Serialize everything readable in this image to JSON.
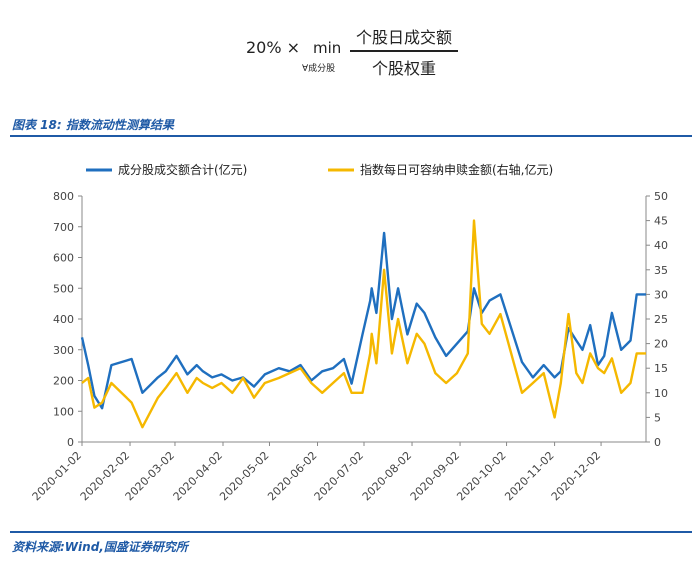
{
  "formula": {
    "prefix": "20% ×",
    "operator": "min",
    "subscript": "∀成分股",
    "numerator": "个股日成交额",
    "denominator": "个股权重"
  },
  "figure_title": "图表 18:  指数流动性测算结果",
  "source": "资料来源:Wind,国盛证券研究所",
  "colors": {
    "series1": "#1f6fbf",
    "series2": "#f5b800",
    "accent": "#1f5aa6"
  },
  "chart_data": {
    "type": "line",
    "legend_position": "top",
    "grid": false,
    "x_ticks": [
      "2020-01-02",
      "2020-02-02",
      "2020-03-02",
      "2020-04-02",
      "2020-05-02",
      "2020-06-02",
      "2020-07-02",
      "2020-08-02",
      "2020-09-02",
      "2020-10-02",
      "2020-11-02",
      "2020-12-02"
    ],
    "xlim": [
      "2020-01-02",
      "2020-12-31"
    ],
    "y_left": {
      "lim": [
        0,
        800
      ],
      "ticks": [
        0,
        100,
        200,
        300,
        400,
        500,
        600,
        700,
        800
      ]
    },
    "y_right": {
      "lim": [
        0,
        50
      ],
      "ticks": [
        0,
        5,
        10,
        15,
        20,
        25,
        30,
        35,
        40,
        45,
        50
      ]
    },
    "series": [
      {
        "name": "成分股成交额合计(亿元)",
        "axis": "left",
        "dates": [
          "2020-01-02",
          "2020-01-06",
          "2020-01-10",
          "2020-01-15",
          "2020-01-21",
          "2020-02-03",
          "2020-02-10",
          "2020-02-20",
          "2020-02-25",
          "2020-03-03",
          "2020-03-10",
          "2020-03-16",
          "2020-03-20",
          "2020-03-26",
          "2020-04-01",
          "2020-04-08",
          "2020-04-15",
          "2020-04-22",
          "2020-04-29",
          "2020-05-08",
          "2020-05-15",
          "2020-05-22",
          "2020-05-29",
          "2020-06-05",
          "2020-06-12",
          "2020-06-19",
          "2020-06-24",
          "2020-07-01",
          "2020-07-06",
          "2020-07-07",
          "2020-07-10",
          "2020-07-15",
          "2020-07-20",
          "2020-07-24",
          "2020-07-30",
          "2020-08-05",
          "2020-08-10",
          "2020-08-17",
          "2020-08-24",
          "2020-08-31",
          "2020-09-07",
          "2020-09-11",
          "2020-09-16",
          "2020-09-21",
          "2020-09-28",
          "2020-10-12",
          "2020-10-19",
          "2020-10-26",
          "2020-11-02",
          "2020-11-06",
          "2020-11-11",
          "2020-11-16",
          "2020-11-20",
          "2020-11-25",
          "2020-11-30",
          "2020-12-04",
          "2020-12-09",
          "2020-12-15",
          "2020-12-21",
          "2020-12-25",
          "2020-12-31"
        ],
        "values": [
          340,
          250,
          150,
          110,
          250,
          270,
          160,
          210,
          230,
          280,
          220,
          250,
          230,
          210,
          220,
          200,
          210,
          180,
          220,
          240,
          230,
          250,
          200,
          230,
          240,
          270,
          190,
          350,
          460,
          500,
          420,
          680,
          400,
          500,
          350,
          450,
          420,
          340,
          280,
          320,
          360,
          500,
          420,
          460,
          480,
          260,
          210,
          250,
          210,
          230,
          370,
          330,
          300,
          380,
          250,
          280,
          420,
          300,
          330,
          480,
          480
        ]
      },
      {
        "name": "指数每日可容纳申赎金额(右轴,亿元)",
        "axis": "right",
        "dates": [
          "2020-01-02",
          "2020-01-06",
          "2020-01-10",
          "2020-01-15",
          "2020-01-21",
          "2020-02-03",
          "2020-02-10",
          "2020-02-20",
          "2020-02-25",
          "2020-03-03",
          "2020-03-10",
          "2020-03-16",
          "2020-03-20",
          "2020-03-26",
          "2020-04-01",
          "2020-04-08",
          "2020-04-15",
          "2020-04-22",
          "2020-04-29",
          "2020-05-08",
          "2020-05-15",
          "2020-05-22",
          "2020-05-29",
          "2020-06-05",
          "2020-06-12",
          "2020-06-19",
          "2020-06-24",
          "2020-07-01",
          "2020-07-06",
          "2020-07-07",
          "2020-07-10",
          "2020-07-15",
          "2020-07-20",
          "2020-07-24",
          "2020-07-30",
          "2020-08-05",
          "2020-08-10",
          "2020-08-17",
          "2020-08-24",
          "2020-08-31",
          "2020-09-07",
          "2020-09-11",
          "2020-09-16",
          "2020-09-21",
          "2020-09-28",
          "2020-10-12",
          "2020-10-19",
          "2020-10-26",
          "2020-11-02",
          "2020-11-06",
          "2020-11-11",
          "2020-11-16",
          "2020-11-20",
          "2020-11-25",
          "2020-11-30",
          "2020-12-04",
          "2020-12-09",
          "2020-12-15",
          "2020-12-21",
          "2020-12-25",
          "2020-12-31"
        ],
        "values": [
          12,
          13,
          7,
          8,
          12,
          8,
          3,
          9,
          11,
          14,
          10,
          13,
          12,
          11,
          12,
          10,
          13,
          9,
          12,
          13,
          14,
          15,
          12,
          10,
          12,
          14,
          10,
          10,
          18,
          22,
          16,
          35,
          18,
          25,
          16,
          22,
          20,
          14,
          12,
          14,
          18,
          45,
          24,
          22,
          26,
          10,
          12,
          14,
          5,
          12,
          26,
          14,
          12,
          18,
          15,
          14,
          17,
          10,
          12,
          18,
          18
        ]
      }
    ]
  }
}
